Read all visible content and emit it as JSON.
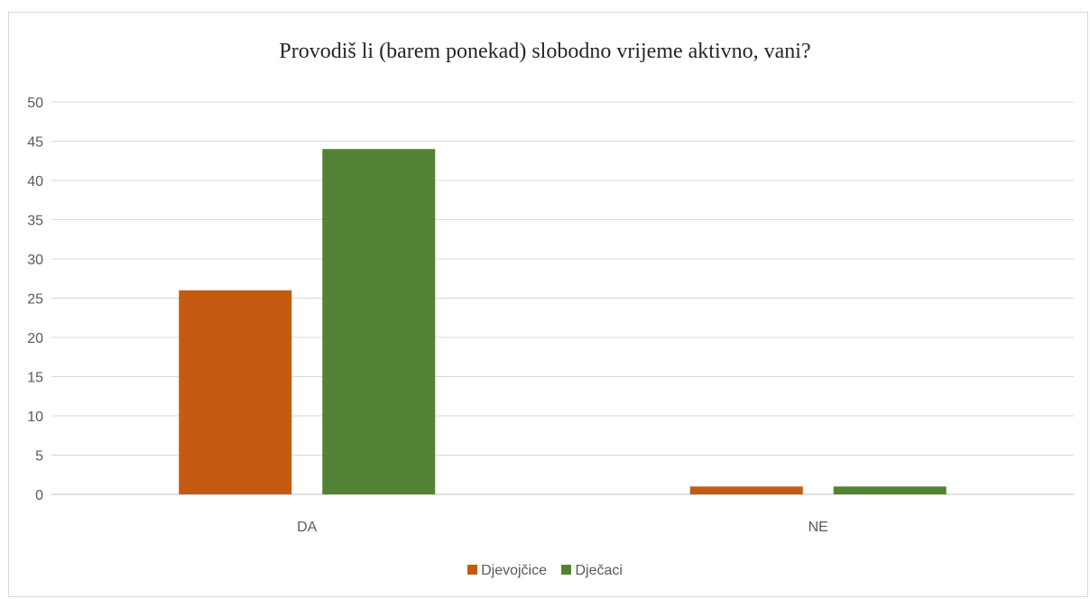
{
  "chart_data": {
    "type": "bar",
    "title": "Provodiš li (barem ponekad) slobodno vrijeme aktivno, vani?",
    "categories": [
      "DA",
      "NE"
    ],
    "series": [
      {
        "name": "Djevojčice",
        "values": [
          26,
          1
        ],
        "color": "#c55a11"
      },
      {
        "name": "Dječaci",
        "values": [
          44,
          1
        ],
        "color": "#548235"
      }
    ],
    "ylim": [
      0,
      50
    ],
    "yticks": [
      0,
      5,
      10,
      15,
      20,
      25,
      30,
      35,
      40,
      45,
      50
    ],
    "grid": true,
    "legend_position": "bottom",
    "xlabel": "",
    "ylabel": ""
  }
}
